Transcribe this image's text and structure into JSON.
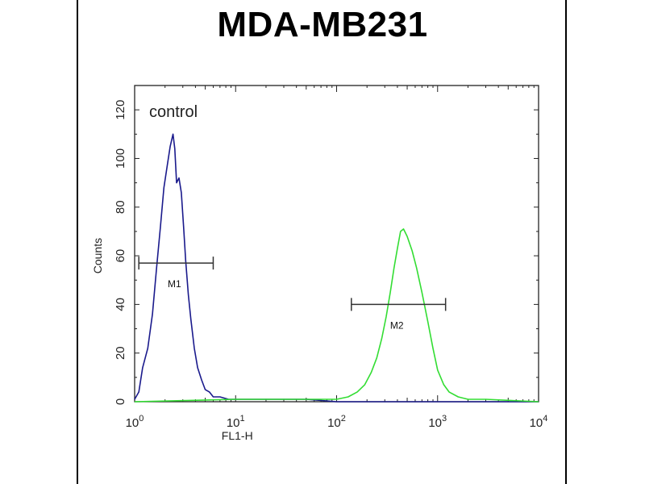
{
  "chart_data": {
    "type": "line",
    "title": "MDA-MB231",
    "xlabel": "FL1-H",
    "ylabel": "Counts",
    "x_scale": "log",
    "xlim": [
      1,
      10000
    ],
    "ylim": [
      0,
      130
    ],
    "x_ticks": [
      {
        "value": 1,
        "base": "10",
        "exp": "0"
      },
      {
        "value": 10,
        "base": "10",
        "exp": "1"
      },
      {
        "value": 100,
        "base": "10",
        "exp": "2"
      },
      {
        "value": 1000,
        "base": "10",
        "exp": "3"
      },
      {
        "value": 10000,
        "base": "10",
        "exp": "4"
      }
    ],
    "y_ticks": [
      0,
      20,
      40,
      60,
      80,
      100,
      120
    ],
    "annotation": "control",
    "series": [
      {
        "color": "#1a1a8c",
        "x": [
          1.0,
          1.1,
          1.2,
          1.35,
          1.5,
          1.65,
          1.8,
          1.95,
          2.1,
          2.25,
          2.4,
          2.5,
          2.6,
          2.75,
          2.9,
          3.05,
          3.2,
          3.4,
          3.6,
          3.9,
          4.2,
          4.6,
          5.0,
          5.5,
          6.0,
          7.0,
          8.5,
          10,
          20,
          50,
          100,
          1000,
          10000
        ],
        "y": [
          1,
          4,
          14,
          22,
          36,
          55,
          72,
          88,
          97,
          105,
          110,
          104,
          90,
          92,
          86,
          72,
          58,
          44,
          34,
          22,
          14,
          9,
          5,
          4,
          2,
          2,
          1,
          1,
          1,
          1,
          0,
          0,
          0
        ]
      },
      {
        "color": "#33dd33",
        "x": [
          1,
          10,
          50,
          100,
          130,
          160,
          190,
          220,
          250,
          280,
          310,
          340,
          370,
          400,
          430,
          460,
          500,
          560,
          620,
          700,
          800,
          900,
          1000,
          1150,
          1300,
          1600,
          2000,
          3000,
          10000
        ],
        "y": [
          0,
          1,
          1,
          1,
          2,
          4,
          7,
          12,
          18,
          26,
          35,
          45,
          55,
          63,
          70,
          71,
          68,
          62,
          55,
          45,
          33,
          22,
          13,
          7,
          4,
          2,
          1,
          1,
          0
        ]
      }
    ],
    "markers": [
      {
        "label": "M1",
        "x_start": 1.1,
        "x_end": 6.0,
        "y": 57
      },
      {
        "label": "M2",
        "x_start": 140,
        "x_end": 1200,
        "y": 40
      }
    ]
  }
}
